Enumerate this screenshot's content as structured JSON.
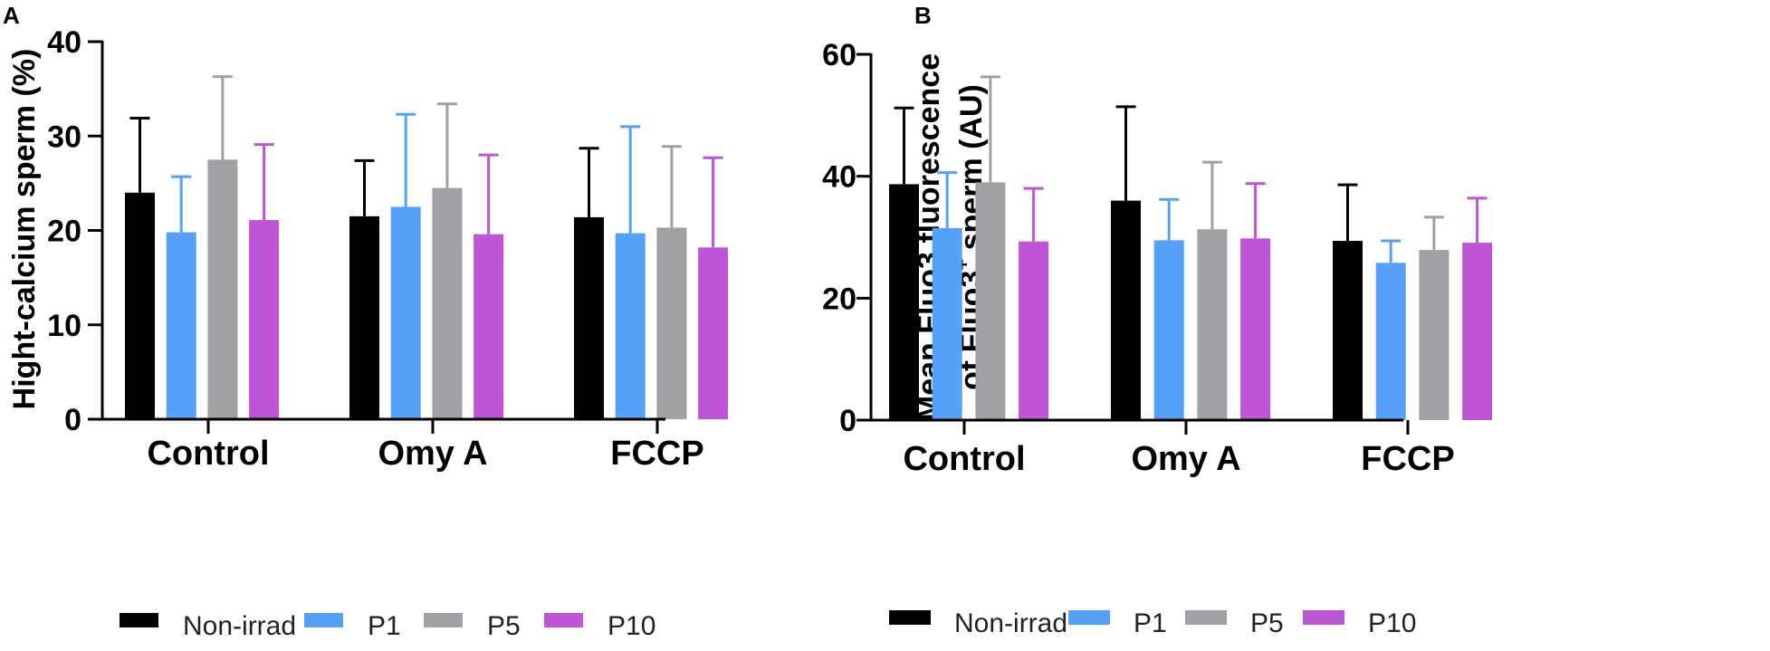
{
  "legend": [
    {
      "key": "non_irrad",
      "label": "Non-irrad",
      "color": "#000000"
    },
    {
      "key": "p1",
      "label": "P1",
      "color": "#55A0F8"
    },
    {
      "key": "p5",
      "label": "P5",
      "color": "#A0A0A5"
    },
    {
      "key": "p10",
      "label": "P10",
      "color": "#BE55D6"
    }
  ],
  "chart_data": [
    {
      "panel": "A",
      "type": "bar",
      "ylabel": "Hight-calcium sperm (%)",
      "ylim": [
        0,
        40
      ],
      "yticks": [
        0,
        10,
        20,
        30,
        40
      ],
      "categories": [
        "Control",
        "Omy A",
        "FCCP"
      ],
      "series": [
        {
          "name": "Non-irrad",
          "values": [
            24.0,
            21.5,
            21.4
          ],
          "errors": [
            7.9,
            5.9,
            7.3
          ]
        },
        {
          "name": "P1",
          "values": [
            19.8,
            22.5,
            19.7
          ],
          "errors": [
            5.9,
            9.8,
            11.3
          ]
        },
        {
          "name": "P5",
          "values": [
            27.5,
            24.5,
            20.3
          ],
          "errors": [
            8.8,
            8.9,
            8.6
          ]
        },
        {
          "name": "P10",
          "values": [
            21.1,
            19.6,
            18.2
          ],
          "errors": [
            8.0,
            8.4,
            9.5
          ]
        }
      ]
    },
    {
      "panel": "B",
      "type": "bar",
      "ylabel_line1": "Mean Fluo3 fluorescence",
      "ylabel_line2": "of Fluo3",
      "ylabel_sup": "+",
      "ylabel_line2_end": " sperm (AU)",
      "ylim": [
        0,
        60
      ],
      "yticks": [
        0,
        20,
        40,
        60
      ],
      "categories": [
        "Control",
        "Omy A",
        "FCCP"
      ],
      "series": [
        {
          "name": "Non-irrad",
          "values": [
            38.7,
            36.0,
            29.4
          ],
          "errors": [
            12.5,
            15.4,
            9.2
          ]
        },
        {
          "name": "P1",
          "values": [
            31.5,
            29.5,
            25.8
          ],
          "errors": [
            9.1,
            6.7,
            3.6
          ]
        },
        {
          "name": "P5",
          "values": [
            39.0,
            31.3,
            27.9
          ],
          "errors": [
            17.3,
            11.0,
            5.4
          ]
        },
        {
          "name": "P10",
          "values": [
            29.3,
            29.8,
            29.1
          ],
          "errors": [
            8.7,
            9.0,
            7.3
          ]
        }
      ]
    }
  ]
}
